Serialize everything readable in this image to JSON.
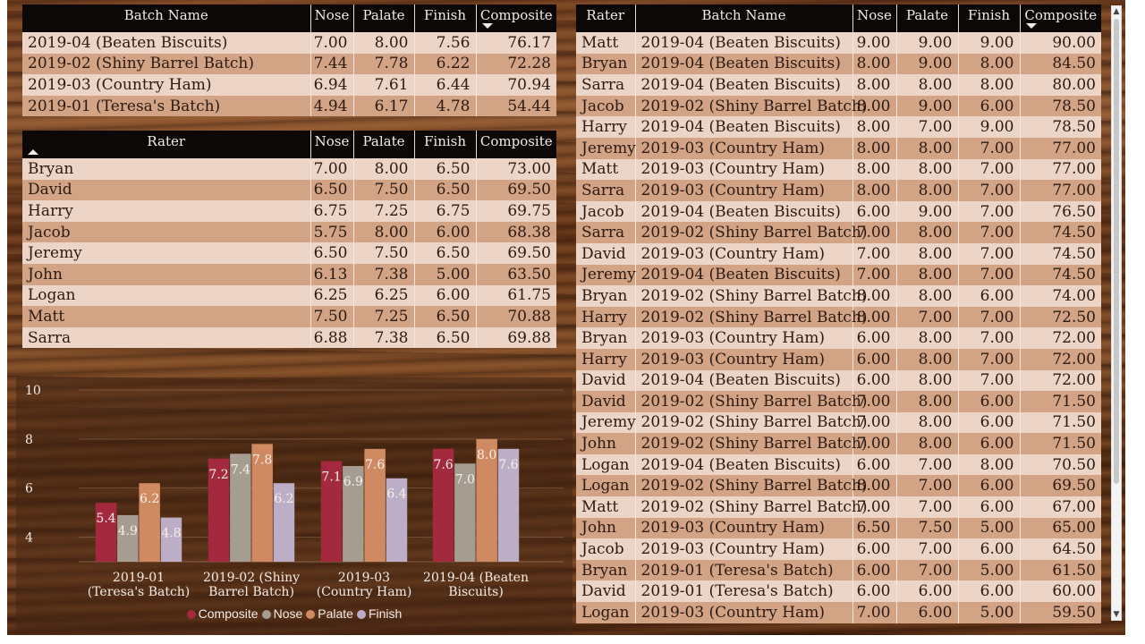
{
  "batch_table": {
    "headers": [
      "Batch Name",
      "Nose",
      "Palate",
      "Finish",
      "Composite"
    ],
    "rows": [
      [
        "2019-04 (Beaten Biscuits)",
        "7.00",
        "8.00",
        "7.56",
        "76.17"
      ],
      [
        "2019-02 (Shiny Barrel Batch)",
        "7.44",
        "7.78",
        "6.22",
        "72.28"
      ],
      [
        "2019-03 (Country Ham)",
        "6.94",
        "7.61",
        "6.44",
        "70.94"
      ],
      [
        "2019-01 (Teresa's Batch)",
        "4.94",
        "6.17",
        "4.78",
        "54.44"
      ]
    ]
  },
  "rater_table": {
    "headers": [
      "Rater",
      "Nose",
      "Palate",
      "Finish",
      "Composite"
    ],
    "rows": [
      [
        "Bryan",
        "7.00",
        "8.00",
        "6.50",
        "73.00"
      ],
      [
        "David",
        "6.50",
        "7.50",
        "6.50",
        "69.50"
      ],
      [
        "Harry",
        "6.75",
        "7.25",
        "6.75",
        "69.75"
      ],
      [
        "Jacob",
        "5.75",
        "8.00",
        "6.00",
        "68.38"
      ],
      [
        "Jeremy",
        "6.50",
        "7.50",
        "6.50",
        "69.50"
      ],
      [
        "John",
        "6.13",
        "7.38",
        "5.00",
        "63.50"
      ],
      [
        "Logan",
        "6.25",
        "6.25",
        "6.00",
        "61.75"
      ],
      [
        "Matt",
        "7.50",
        "7.25",
        "6.50",
        "70.88"
      ],
      [
        "Sarra",
        "6.88",
        "7.38",
        "6.50",
        "69.88"
      ]
    ]
  },
  "detail_table": {
    "headers": [
      "Rater",
      "Batch Name",
      "Nose",
      "Palate",
      "Finish",
      "Composite"
    ],
    "rows": [
      [
        "Matt",
        "2019-04 (Beaten Biscuits)",
        "9.00",
        "9.00",
        "9.00",
        "90.00"
      ],
      [
        "Bryan",
        "2019-04 (Beaten Biscuits)",
        "8.00",
        "9.00",
        "8.00",
        "84.50"
      ],
      [
        "Sarra",
        "2019-04 (Beaten Biscuits)",
        "8.00",
        "8.00",
        "8.00",
        "80.00"
      ],
      [
        "Jacob",
        "2019-02 (Shiny Barrel Batch)",
        "8.00",
        "9.00",
        "6.00",
        "78.50"
      ],
      [
        "Harry",
        "2019-04 (Beaten Biscuits)",
        "8.00",
        "7.00",
        "9.00",
        "78.50"
      ],
      [
        "Jeremy",
        "2019-03 (Country Ham)",
        "8.00",
        "8.00",
        "7.00",
        "77.00"
      ],
      [
        "Matt",
        "2019-03 (Country Ham)",
        "8.00",
        "8.00",
        "7.00",
        "77.00"
      ],
      [
        "Sarra",
        "2019-03 (Country Ham)",
        "8.00",
        "8.00",
        "7.00",
        "77.00"
      ],
      [
        "Jacob",
        "2019-04 (Beaten Biscuits)",
        "6.00",
        "9.00",
        "7.00",
        "76.50"
      ],
      [
        "Sarra",
        "2019-02 (Shiny Barrel Batch)",
        "7.00",
        "8.00",
        "7.00",
        "74.50"
      ],
      [
        "David",
        "2019-03 (Country Ham)",
        "7.00",
        "8.00",
        "7.00",
        "74.50"
      ],
      [
        "Jeremy",
        "2019-04 (Beaten Biscuits)",
        "7.00",
        "8.00",
        "7.00",
        "74.50"
      ],
      [
        "Bryan",
        "2019-02 (Shiny Barrel Batch)",
        "8.00",
        "8.00",
        "6.00",
        "74.00"
      ],
      [
        "Harry",
        "2019-02 (Shiny Barrel Batch)",
        "8.00",
        "7.00",
        "7.00",
        "72.50"
      ],
      [
        "Bryan",
        "2019-03 (Country Ham)",
        "6.00",
        "8.00",
        "7.00",
        "72.00"
      ],
      [
        "Harry",
        "2019-03 (Country Ham)",
        "6.00",
        "8.00",
        "7.00",
        "72.00"
      ],
      [
        "David",
        "2019-04 (Beaten Biscuits)",
        "6.00",
        "8.00",
        "7.00",
        "72.00"
      ],
      [
        "David",
        "2019-02 (Shiny Barrel Batch)",
        "7.00",
        "8.00",
        "6.00",
        "71.50"
      ],
      [
        "Jeremy",
        "2019-02 (Shiny Barrel Batch)",
        "7.00",
        "8.00",
        "6.00",
        "71.50"
      ],
      [
        "John",
        "2019-02 (Shiny Barrel Batch)",
        "7.00",
        "8.00",
        "6.00",
        "71.50"
      ],
      [
        "Logan",
        "2019-04 (Beaten Biscuits)",
        "6.00",
        "7.00",
        "8.00",
        "70.50"
      ],
      [
        "Logan",
        "2019-02 (Shiny Barrel Batch)",
        "8.00",
        "7.00",
        "6.00",
        "69.50"
      ],
      [
        "Matt",
        "2019-02 (Shiny Barrel Batch)",
        "7.00",
        "7.00",
        "6.00",
        "67.00"
      ],
      [
        "John",
        "2019-03 (Country Ham)",
        "6.50",
        "7.50",
        "5.00",
        "65.00"
      ],
      [
        "Jacob",
        "2019-03 (Country Ham)",
        "6.00",
        "7.00",
        "6.00",
        "64.50"
      ],
      [
        "Bryan",
        "2019-01 (Teresa's Batch)",
        "6.00",
        "7.00",
        "5.00",
        "61.50"
      ],
      [
        "David",
        "2019-01 (Teresa's Batch)",
        "6.00",
        "6.00",
        "6.00",
        "60.00"
      ],
      [
        "Logan",
        "2019-03 (Country Ham)",
        "7.00",
        "6.00",
        "5.00",
        "59.50"
      ]
    ]
  },
  "chart_data": {
    "type": "bar",
    "categories": [
      "2019-01 (Teresa's Batch)",
      "2019-02 (Shiny Barrel Batch)",
      "2019-03 (Country Ham)",
      "2019-04 (Beaten Biscuits)"
    ],
    "category_lines": [
      [
        "2019-01",
        "(Teresa's Batch)"
      ],
      [
        "2019-02 (Shiny",
        "Barrel Batch)"
      ],
      [
        "2019-03",
        "(Country Ham)"
      ],
      [
        "2019-04 (Beaten",
        "Biscuits)"
      ]
    ],
    "series": [
      {
        "name": "Composite",
        "color": "#a32a3e",
        "values": [
          5.4,
          7.2,
          7.1,
          7.6
        ]
      },
      {
        "name": "Nose",
        "color": "#a59c92",
        "values": [
          4.9,
          7.4,
          6.9,
          7.0
        ]
      },
      {
        "name": "Palate",
        "color": "#d08a62",
        "values": [
          6.2,
          7.8,
          7.6,
          8.0
        ]
      },
      {
        "name": "Finish",
        "color": "#bcaec6",
        "values": [
          4.8,
          6.2,
          6.4,
          7.6
        ]
      }
    ],
    "y_ticks": [
      4,
      6,
      8,
      10
    ],
    "ylim": [
      3.0,
      10
    ],
    "legend_position": "bottom",
    "grid": true
  }
}
